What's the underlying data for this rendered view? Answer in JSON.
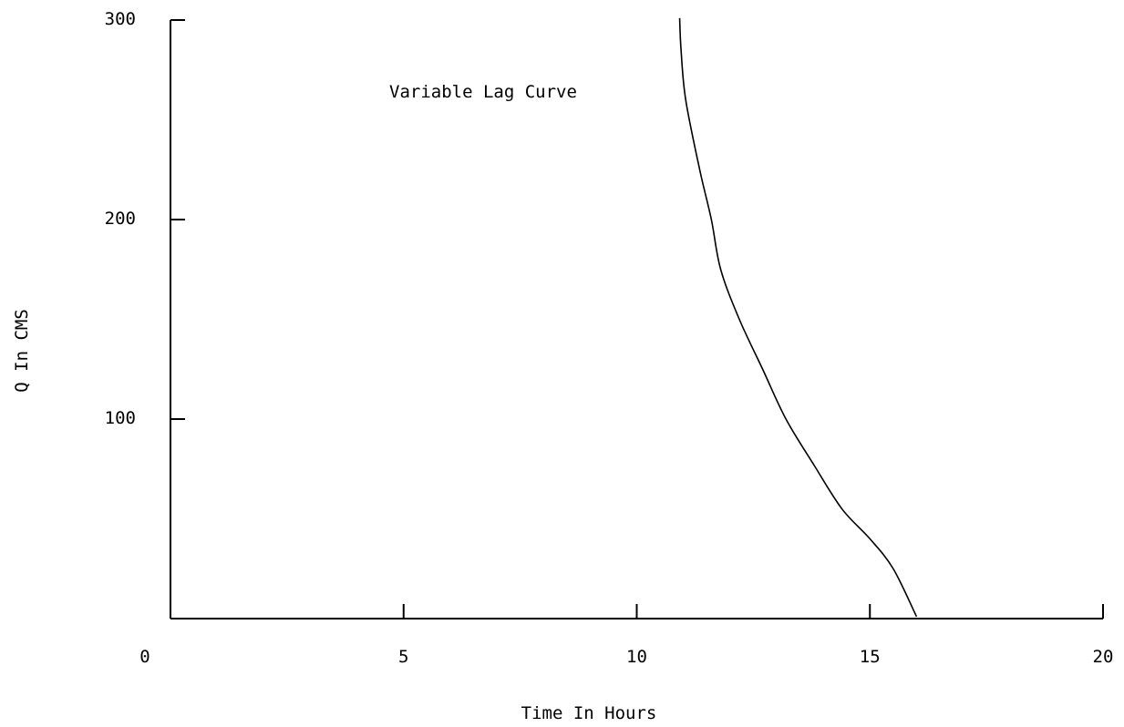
{
  "chart_data": {
    "type": "line",
    "title": "Variable Lag Curve",
    "xlabel": "Time In Hours",
    "ylabel": "Q In CMS",
    "xlim": [
      0,
      20
    ],
    "ylim": [
      0,
      300
    ],
    "x_ticks": [
      0,
      5,
      10,
      15,
      20
    ],
    "y_ticks": [
      100,
      200,
      300
    ],
    "grid": false,
    "series": [
      {
        "color": "#000000",
        "points": [
          [
            16.0,
            1
          ],
          [
            15.5,
            25
          ],
          [
            15.0,
            40
          ],
          [
            14.4,
            55
          ],
          [
            13.8,
            77
          ],
          [
            13.2,
            100
          ],
          [
            12.7,
            125
          ],
          [
            12.2,
            150
          ],
          [
            11.8,
            175
          ],
          [
            11.6,
            200
          ],
          [
            11.35,
            225
          ],
          [
            11.05,
            260
          ],
          [
            10.95,
            285
          ],
          [
            10.92,
            301
          ]
        ]
      }
    ]
  }
}
